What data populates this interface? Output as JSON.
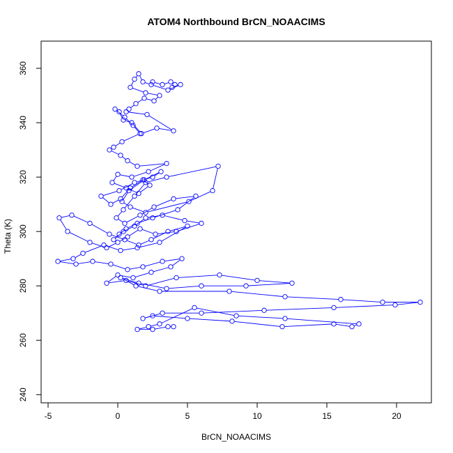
{
  "chart_data": {
    "type": "line",
    "title": "ATOM4 Northbound BrCN_NOAACIMS",
    "xlabel": "BrCN_NOAACIMS",
    "ylabel": "Theta (K)",
    "xlim": [
      -5.5,
      22.5
    ],
    "ylim": [
      237,
      370
    ],
    "xticks": [
      -5,
      0,
      5,
      10,
      15,
      20
    ],
    "xtick_labels": [
      "-5",
      "0",
      "5",
      "10",
      "15",
      "20"
    ],
    "yticks": [
      240,
      260,
      280,
      300,
      320,
      340,
      360
    ],
    "ytick_labels": [
      "240",
      "260",
      "280",
      "300",
      "320",
      "340",
      "360"
    ],
    "grid": false,
    "marker": "open-circle",
    "colors": {
      "series": "#0000ff",
      "axis": "#000000",
      "background": "#ffffff"
    },
    "series": [
      {
        "x": [
          2.5,
          3.2,
          3.8,
          4.1,
          3.9,
          4.5,
          3.6,
          2.4,
          1.8,
          1.5,
          1.2,
          0.9,
          2.0,
          3.0,
          2.6,
          1.9,
          1.3,
          0.8,
          0.6,
          2.1,
          4.0,
          2.8,
          1.7,
          1.0,
          0.4,
          0.1,
          -0.2,
          0.5,
          1.1,
          1.6,
          0.3,
          -0.3,
          -0.6,
          0.2,
          0.7,
          1.4,
          3.5,
          2.2,
          1.0,
          0.0,
          -0.4,
          0.6,
          1.5,
          2.3,
          1.8,
          0.9,
          0.2,
          -0.5,
          -1.2,
          0.1,
          1.2,
          2.5,
          3.1,
          1.9,
          0.8,
          0.3,
          0.9,
          2.0,
          5.1,
          6.8,
          7.2,
          3.5,
          2.0,
          1.2,
          0.4,
          -0.1,
          0.5,
          1.6,
          2.6,
          4.0,
          5.6,
          4.3,
          2.5,
          1.4,
          0.6,
          0.1,
          -0.3,
          0.4,
          1.2,
          2.0,
          3.2,
          4.8,
          6.0,
          4.2,
          2.7,
          1.6,
          0.7,
          0.0,
          -0.8,
          -2.0,
          -3.6,
          -4.2,
          -3.3,
          -2.0,
          -0.6,
          0.5,
          1.5,
          2.4,
          3.6,
          5.0,
          3.0,
          1.4,
          0.2,
          -1.0,
          -2.5,
          -3.2,
          -4.3,
          -3.0,
          -1.8,
          -0.5,
          0.7,
          1.8,
          3.2,
          4.6,
          3.8,
          2.4,
          1.1,
          0.0,
          -0.8,
          0.6,
          2.0,
          4.2,
          7.3,
          10.0,
          12.5,
          9.2,
          6.0,
          3.5,
          1.5,
          0.2,
          1.3,
          3.0,
          8.0,
          12.0,
          16.0,
          19.0,
          21.7,
          19.9,
          15.5,
          10.5,
          6.0,
          3.2,
          1.8,
          2.5,
          5.0,
          8.2,
          11.8,
          15.5,
          16.8,
          17.3,
          12.0,
          8.5,
          5.5,
          3.0,
          2.2,
          1.4,
          2.5,
          3.6,
          4.0
        ],
        "y": [
          355,
          354,
          355,
          354,
          353,
          354,
          352,
          354,
          355,
          358,
          356,
          353,
          351,
          350,
          348,
          349,
          347,
          345,
          344,
          343,
          337,
          338,
          336,
          340,
          341,
          344,
          345,
          342,
          339,
          336,
          333,
          331,
          330,
          328,
          326,
          324,
          325,
          322,
          320,
          321,
          318,
          316,
          314,
          317,
          319,
          316,
          312,
          310,
          313,
          315,
          318,
          320,
          322,
          319,
          315,
          311,
          309,
          307,
          311,
          315,
          324,
          320,
          318,
          313,
          308,
          305,
          303,
          306,
          309,
          312,
          313,
          308,
          305,
          303,
          301,
          299,
          297,
          300,
          302,
          305,
          306,
          304,
          303,
          300,
          299,
          301,
          298,
          296,
          294,
          296,
          300,
          305,
          306,
          303,
          299,
          297,
          295,
          297,
          300,
          302,
          296,
          294,
          293,
          295,
          292,
          290,
          289,
          288,
          289,
          288,
          286,
          287,
          289,
          290,
          287,
          285,
          283,
          284,
          281,
          282,
          280,
          283,
          284,
          282,
          281,
          280,
          280,
          279,
          281,
          283,
          280,
          278,
          278,
          276,
          275,
          274,
          274,
          273,
          272,
          271,
          270,
          270,
          268,
          269,
          268,
          267,
          265,
          266,
          265,
          266,
          268,
          269,
          272,
          266,
          265,
          264,
          264,
          265,
          265
        ]
      }
    ]
  }
}
